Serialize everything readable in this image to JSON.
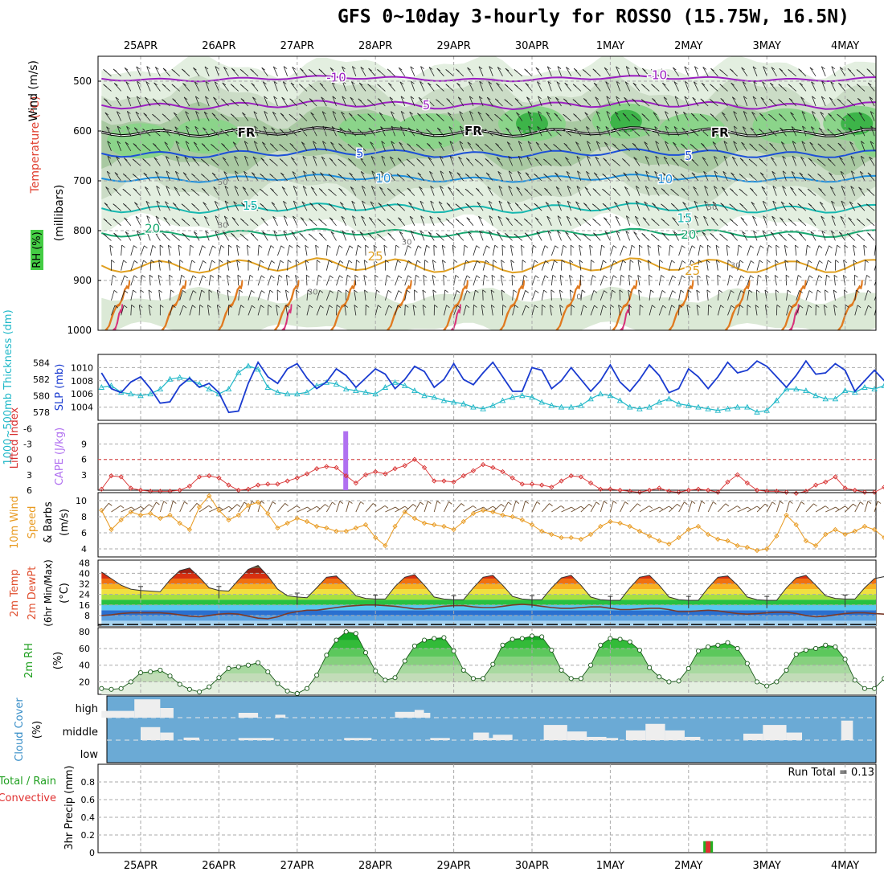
{
  "title": "GFS 0~10day 3-hourly for ROSSO (15.75W, 16.5N)",
  "chart_data": {
    "type": "line",
    "x_dates": [
      "25APR",
      "26APR",
      "27APR",
      "28APR",
      "29APR",
      "30APR",
      "1MAY",
      "2MAY",
      "3MAY",
      "4MAY"
    ],
    "panels": {
      "profile": {
        "ylabel_parts": [
          "Wind (m/s)",
          "Temperature (°C)",
          "(millibars)",
          "RH (%)"
        ],
        "yticks": [
          500,
          600,
          700,
          800,
          900,
          1000
        ],
        "ylim": [
          450,
          1000
        ],
        "contour_labels": [
          {
            "label": "-10",
            "day": 2.5,
            "p": 493
          },
          {
            "label": "-10",
            "day": 6.6,
            "p": 488
          },
          {
            "label": "5",
            "day": 3.65,
            "p": 548
          },
          {
            "label": "FR",
            "day": 1.35,
            "p": 603
          },
          {
            "label": "FR",
            "day": 4.25,
            "p": 600
          },
          {
            "label": "FR",
            "day": 7.4,
            "p": 603
          },
          {
            "label": "5",
            "day": 2.8,
            "p": 645
          },
          {
            "label": "5",
            "day": 7.0,
            "p": 650
          },
          {
            "label": "10",
            "day": 3.1,
            "p": 695
          },
          {
            "label": "10",
            "day": 6.7,
            "p": 697
          },
          {
            "label": "15",
            "day": 1.4,
            "p": 750
          },
          {
            "label": "15",
            "day": 6.95,
            "p": 775
          },
          {
            "label": "20",
            "day": 0.15,
            "p": 796
          },
          {
            "label": "20",
            "day": 7.0,
            "p": 808
          },
          {
            "label": "25",
            "day": 3.0,
            "p": 852
          },
          {
            "label": "25",
            "day": 7.05,
            "p": 881
          },
          {
            "label": "50",
            "day": 1.05,
            "p": 700
          },
          {
            "label": "50",
            "day": 7.3,
            "p": 750
          },
          {
            "label": "30",
            "day": 1.05,
            "p": 786
          },
          {
            "label": "30",
            "day": 3.4,
            "p": 820
          },
          {
            "label": "30",
            "day": 7.6,
            "p": 867
          },
          {
            "label": "30",
            "day": 2.2,
            "p": 920
          },
          {
            "label": "0",
            "day": 5.6,
            "p": 930
          }
        ]
      },
      "thickness_slp": {
        "ylabel_left": "1000~500mb Thickness (dm)",
        "ylabel_right": "SLP (mb)",
        "left_ticks": [
          578,
          580,
          582,
          584
        ],
        "right_ticks": [
          1004,
          1006,
          1008,
          1010
        ],
        "thickness_dm": [
          581.0,
          581.2,
          580.4,
          580.2,
          580.0,
          580.2,
          580.8,
          582.0,
          582.2,
          582.0,
          581.4,
          580.8,
          580.2,
          580.8,
          582.8,
          583.6,
          583.2,
          581.0,
          580.4,
          580.2,
          580.2,
          580.4,
          581.2,
          581.6,
          581.4,
          580.8,
          580.6,
          580.4,
          580.2,
          581.0,
          581.6,
          581.2,
          580.6,
          580.0,
          579.8,
          579.4,
          579.2,
          579.0,
          578.6,
          578.4,
          578.8,
          579.4,
          579.8,
          580.0,
          579.8,
          579.2,
          578.8,
          578.6,
          578.6,
          578.8,
          579.6,
          580.2,
          580.0,
          579.4,
          578.6,
          578.4,
          578.6,
          579.2,
          579.6,
          579.0,
          578.8,
          578.6,
          578.4,
          578.2,
          578.4,
          578.6,
          578.6,
          578.0,
          578.2,
          579.4,
          580.8,
          580.8,
          580.6,
          580.0,
          579.6,
          579.6,
          580.6,
          580.4,
          581.0,
          580.8,
          581.2,
          581.0,
          580.8,
          580.2
        ],
        "slp_mb": [
          1009.2,
          1006.8,
          1006.2,
          1007.8,
          1008.6,
          1006.8,
          1004.6,
          1004.8,
          1007.2,
          1008.4,
          1007.0,
          1007.6,
          1006.2,
          1003.2,
          1003.4,
          1007.6,
          1010.8,
          1008.6,
          1007.6,
          1009.8,
          1010.6,
          1008.4,
          1006.8,
          1007.8,
          1009.8,
          1008.8,
          1007.0,
          1008.4,
          1009.8,
          1009.0,
          1006.8,
          1008.2,
          1010.2,
          1009.4,
          1007.0,
          1008.2,
          1010.6,
          1008.2,
          1007.4,
          1009.2,
          1010.8,
          1008.6,
          1006.4,
          1006.4,
          1010.0,
          1009.6,
          1006.8,
          1008.0,
          1010.0,
          1008.2,
          1006.4,
          1008.0,
          1010.4,
          1007.8,
          1006.4,
          1008.2,
          1010.4,
          1008.8,
          1006.2,
          1006.8,
          1009.8,
          1008.6,
          1006.8,
          1008.6,
          1010.8,
          1009.2,
          1009.6,
          1011.0,
          1010.2,
          1008.6,
          1007.0,
          1008.8,
          1011.0,
          1009.0,
          1009.2,
          1010.6,
          1009.6,
          1006.4,
          1008.0,
          1009.6,
          1008.0,
          1008.8,
          1009.4,
          1008.4
        ]
      },
      "cape_li": {
        "ylabel_left": "Lifted Index",
        "ylabel_right": "CAPE (J/kg)",
        "left_ticks": [
          -6,
          -3,
          0,
          3,
          6
        ],
        "right_ticks": [
          3,
          6,
          9
        ],
        "lifted_index": [
          5.8,
          3.2,
          3.4,
          5.6,
          6.0,
          6.2,
          6.2,
          6.2,
          6.0,
          5.2,
          3.4,
          3.2,
          3.6,
          5.0,
          6.0,
          5.8,
          5.0,
          4.8,
          4.8,
          4.2,
          3.6,
          2.8,
          1.8,
          1.4,
          1.6,
          3.2,
          4.6,
          3.0,
          2.4,
          2.8,
          1.8,
          1.2,
          0.0,
          1.6,
          4.2,
          4.2,
          4.4,
          3.2,
          2.2,
          1.0,
          1.6,
          2.4,
          3.6,
          4.8,
          4.8,
          5.0,
          5.4,
          4.2,
          3.2,
          3.4,
          4.6,
          5.8,
          5.8,
          6.0,
          6.2,
          6.4,
          6.0,
          5.6,
          6.2,
          6.4,
          6.0,
          5.8,
          6.0,
          6.4,
          4.4,
          3.0,
          4.6,
          6.0,
          6.2,
          6.2,
          6.4,
          6.6,
          6.2,
          5.0,
          4.4,
          3.4,
          5.6,
          6.0,
          6.4,
          6.4,
          5.4,
          6.0,
          6.4,
          6.4
        ],
        "cape_spike": {
          "day": 2.62,
          "value": 11.5
        }
      },
      "wind10m": {
        "ylabel": "10m Wind Speed & Barbs (m/s)",
        "ticks": [
          4,
          6,
          8,
          10
        ],
        "speed_ms": [
          8.8,
          6.4,
          7.6,
          8.6,
          8.2,
          8.4,
          7.8,
          8.2,
          7.2,
          6.4,
          9.2,
          10.6,
          8.8,
          7.6,
          8.2,
          9.4,
          9.8,
          8.4,
          6.6,
          7.2,
          7.8,
          7.4,
          6.8,
          6.6,
          6.2,
          6.2,
          6.6,
          7.0,
          5.4,
          4.4,
          6.8,
          8.6,
          7.8,
          7.2,
          7.0,
          6.8,
          6.4,
          7.4,
          8.4,
          8.8,
          8.6,
          8.2,
          8.0,
          7.6,
          7.0,
          6.2,
          5.8,
          5.4,
          5.4,
          5.2,
          5.8,
          6.8,
          7.4,
          7.2,
          6.8,
          6.2,
          5.6,
          5.0,
          4.6,
          5.4,
          6.4,
          6.8,
          5.8,
          5.2,
          5.0,
          4.4,
          4.2,
          3.8,
          4.0,
          5.6,
          8.2,
          7.0,
          5.0,
          4.4,
          5.8,
          6.4,
          5.8,
          6.2,
          6.8,
          6.4,
          5.4,
          4.8,
          4.4,
          3.4
        ]
      },
      "temp2m": {
        "ylabel": "2m Temp 2m DewPt (6hr Min/Max) (°C)",
        "ticks": [
          8,
          16,
          24,
          32,
          40,
          48
        ],
        "temperature_c": [
          41.0,
          36.0,
          31.0,
          28.0,
          27.0,
          26.5,
          26.0,
          35.0,
          42.0,
          44.0,
          37.0,
          29.0,
          27.0,
          26.5,
          35.0,
          43.0,
          46.0,
          38.0,
          28.0,
          23.0,
          22.0,
          21.5,
          29.0,
          37.0,
          38.0,
          31.0,
          23.0,
          21.0,
          20.5,
          20.5,
          30.0,
          37.0,
          39.0,
          31.0,
          22.0,
          20.5,
          20.0,
          20.0,
          29.0,
          37.0,
          38.5,
          31.0,
          22.5,
          20.5,
          20.0,
          20.0,
          29.0,
          36.5,
          38.5,
          31.0,
          22.0,
          20.0,
          19.5,
          19.5,
          29.0,
          37.0,
          38.5,
          31.0,
          22.0,
          20.0,
          19.5,
          19.5,
          29.0,
          37.0,
          38.0,
          31.0,
          22.0,
          20.0,
          19.5,
          19.5,
          29.0,
          36.5,
          38.5,
          31.0,
          23.0,
          21.0,
          20.5,
          20.5,
          29.0,
          36.0,
          37.5,
          30.0,
          23.0,
          21.5
        ],
        "dewpoint_c": [
          8.0,
          8.5,
          9.5,
          10.0,
          10.0,
          10.0,
          10.0,
          9.5,
          8.5,
          7.5,
          7.0,
          8.0,
          9.0,
          9.5,
          9.0,
          7.5,
          6.0,
          5.5,
          7.0,
          9.5,
          11.0,
          12.0,
          12.0,
          13.0,
          14.0,
          15.0,
          15.5,
          16.0,
          16.0,
          15.5,
          15.0,
          14.0,
          13.0,
          13.0,
          14.0,
          15.0,
          15.5,
          15.5,
          14.5,
          14.0,
          14.0,
          15.0,
          16.0,
          16.5,
          16.0,
          15.0,
          14.0,
          13.5,
          13.5,
          14.0,
          14.5,
          14.5,
          13.5,
          12.5,
          12.5,
          13.0,
          13.5,
          13.5,
          12.5,
          11.0,
          11.0,
          11.5,
          12.0,
          11.5,
          10.5,
          9.5,
          9.0,
          9.5,
          10.0,
          10.5,
          10.5,
          9.5,
          8.0,
          7.0,
          7.5,
          8.5,
          9.5,
          10.0,
          10.0,
          9.5,
          9.0,
          9.5,
          10.0,
          10.0
        ]
      },
      "rh2m": {
        "ylabel": "2m RH (%)",
        "ticks": [
          20,
          40,
          60,
          80
        ],
        "rh_pct": [
          12,
          11,
          12,
          20,
          31,
          32,
          34,
          27,
          17,
          11,
          8,
          14,
          25,
          36,
          38,
          40,
          43,
          32,
          18,
          9,
          6,
          12,
          28,
          52,
          70,
          80,
          78,
          55,
          33,
          22,
          25,
          45,
          63,
          70,
          72,
          73,
          57,
          34,
          24,
          24,
          41,
          64,
          71,
          72,
          75,
          74,
          58,
          34,
          24,
          24,
          40,
          64,
          72,
          71,
          68,
          58,
          37,
          26,
          20,
          21,
          36,
          57,
          62,
          64,
          67,
          60,
          42,
          20,
          15,
          20,
          34,
          53,
          58,
          60,
          64,
          62,
          47,
          22,
          12,
          12,
          24,
          44,
          48,
          47
        ],
        "rh_bands": [
          {
            "min": 20,
            "color": "#c2dcb8"
          },
          {
            "min": 30,
            "color": "#a8d9a0"
          },
          {
            "min": 40,
            "color": "#86d07e"
          },
          {
            "min": 50,
            "color": "#5cc85c"
          },
          {
            "min": 60,
            "color": "#33bb39"
          },
          {
            "min": 70,
            "color": "#14aa24"
          }
        ]
      },
      "cloud": {
        "ylabel": "Cloud Cover (%)",
        "levels": [
          "high",
          "middle",
          "low"
        ],
        "blocks": [
          {
            "level": "high",
            "start": 0.0,
            "end": 0.42,
            "frac": 0.35
          },
          {
            "level": "high",
            "start": 0.42,
            "end": 0.75,
            "frac": 0.95
          },
          {
            "level": "high",
            "start": 0.75,
            "end": 0.92,
            "frac": 0.5
          },
          {
            "level": "middle",
            "start": 0.5,
            "end": 0.75,
            "frac": 0.6
          },
          {
            "level": "middle",
            "start": 0.75,
            "end": 0.92,
            "frac": 0.35
          },
          {
            "level": "high",
            "start": 1.75,
            "end": 2.0,
            "frac": 0.25
          },
          {
            "level": "high",
            "start": 2.22,
            "end": 2.35,
            "frac": 0.15
          },
          {
            "level": "middle",
            "start": 1.05,
            "end": 1.25,
            "frac": 0.12
          },
          {
            "level": "middle",
            "start": 1.75,
            "end": 2.2,
            "frac": 0.1
          },
          {
            "level": "middle",
            "start": 3.1,
            "end": 3.45,
            "frac": 0.1
          },
          {
            "level": "high",
            "start": 3.75,
            "end": 4.0,
            "frac": 0.3
          },
          {
            "level": "high",
            "start": 4.0,
            "end": 4.12,
            "frac": 0.4
          },
          {
            "level": "high",
            "start": 4.12,
            "end": 4.2,
            "frac": 0.25
          },
          {
            "level": "middle",
            "start": 4.2,
            "end": 4.45,
            "frac": 0.1
          },
          {
            "level": "middle",
            "start": 4.75,
            "end": 4.95,
            "frac": 0.35
          },
          {
            "level": "middle",
            "start": 4.95,
            "end": 5.2,
            "frac": 0.1
          },
          {
            "level": "middle",
            "start": 5.0,
            "end": 5.25,
            "frac": 0.25
          },
          {
            "level": "middle",
            "start": 5.65,
            "end": 5.95,
            "frac": 0.7
          },
          {
            "level": "middle",
            "start": 5.95,
            "end": 6.2,
            "frac": 0.4
          },
          {
            "level": "middle",
            "start": 6.2,
            "end": 6.45,
            "frac": 0.15
          },
          {
            "level": "middle",
            "start": 6.45,
            "end": 6.6,
            "frac": 0.1
          },
          {
            "level": "middle",
            "start": 6.7,
            "end": 6.95,
            "frac": 0.45
          },
          {
            "level": "middle",
            "start": 6.95,
            "end": 7.2,
            "frac": 0.75
          },
          {
            "level": "middle",
            "start": 7.2,
            "end": 7.45,
            "frac": 0.45
          },
          {
            "level": "middle",
            "start": 7.45,
            "end": 7.65,
            "frac": 0.15
          },
          {
            "level": "middle",
            "start": 8.2,
            "end": 8.45,
            "frac": 0.3
          },
          {
            "level": "middle",
            "start": 8.45,
            "end": 8.75,
            "frac": 0.7
          },
          {
            "level": "middle",
            "start": 8.75,
            "end": 8.95,
            "frac": 0.35
          },
          {
            "level": "middle",
            "start": 9.45,
            "end": 9.6,
            "frac": 0.9
          }
        ]
      },
      "precip": {
        "ylabel": "3hr Precip (mm)",
        "legend": [
          "Total / Rain",
          "Convective"
        ],
        "ticks": [
          0,
          0.2,
          0.4,
          0.6,
          0.8
        ],
        "run_total_label": "Run Total = 0.13",
        "bars": [
          {
            "day": 7.25,
            "total": 0.13,
            "convective": 0.13
          }
        ]
      }
    }
  }
}
